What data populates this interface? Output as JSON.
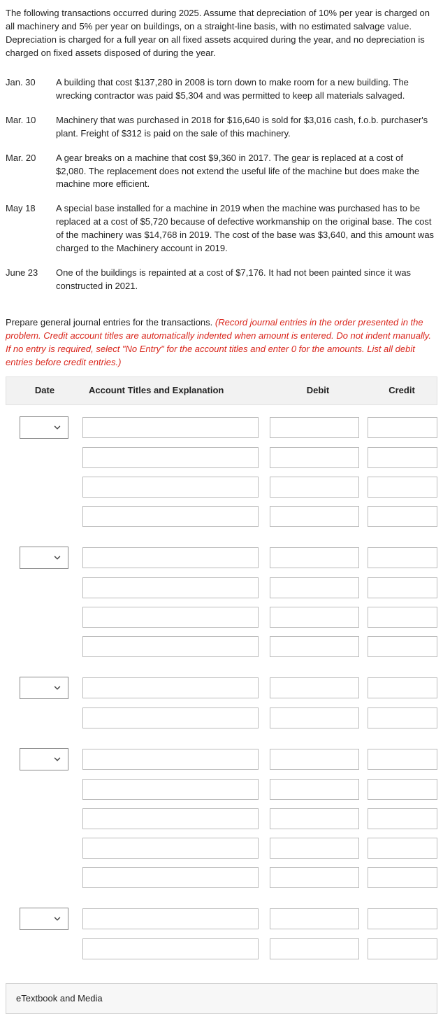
{
  "intro_text": "The following transactions occurred during 2025. Assume that depreciation of 10% per year is charged on all machinery and 5% per year on buildings, on a straight-line basis, with no estimated salvage value. Depreciation is charged for a full year on all fixed assets acquired during the year, and no depreciation is charged on fixed assets disposed of during the year.",
  "transactions": [
    {
      "date": "Jan. 30",
      "desc": "A building that cost $137,280 in 2008 is torn down to make room for a new building. The wrecking contractor was paid $5,304 and was permitted to keep all materials salvaged."
    },
    {
      "date": "Mar. 10",
      "desc": "Machinery that was purchased in 2018 for $16,640 is sold for $3,016 cash, f.o.b. purchaser's plant. Freight of $312 is paid on the sale of this machinery."
    },
    {
      "date": "Mar. 20",
      "desc": "A gear breaks on a machine that cost $9,360 in 2017. The gear is replaced at a cost of $2,080. The replacement does not extend the useful life of the machine but does make the machine more efficient."
    },
    {
      "date": "May 18",
      "desc": "A special base installed for a machine in 2019 when the machine was purchased has to be replaced at a cost of $5,720 because of defective workmanship on the original base. The cost of the machinery was $14,768 in 2019. The cost of the base was $3,640, and this amount was charged to the Machinery account in 2019."
    },
    {
      "date": "June 23",
      "desc": "One of the buildings is repainted at a cost of $7,176. It had not been painted since it was constructed in 2021."
    }
  ],
  "instruction_lead": "Prepare general journal entries for the transactions. ",
  "instruction_red": "(Record journal entries in the order presented in the problem. Credit account titles are automatically indented when amount is entered. Do not indent manually. If no entry is required, select \"No Entry\" for the account titles and enter 0 for the amounts. List all debit entries before credit entries.)",
  "headers": {
    "date": "Date",
    "account": "Account Titles and Explanation",
    "debit": "Debit",
    "credit": "Credit"
  },
  "groups": [
    {
      "has_date_select": true,
      "rows": 4
    },
    {
      "has_date_select": true,
      "rows": 4
    },
    {
      "has_date_select": true,
      "rows": 2
    },
    {
      "has_date_select": true,
      "rows": 5
    },
    {
      "has_date_select": true,
      "rows": 2
    }
  ],
  "etextbook_label": "eTextbook and Media"
}
